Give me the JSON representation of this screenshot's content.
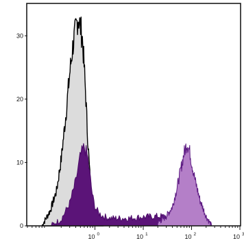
{
  "chart_data": {
    "type": "area",
    "title": "",
    "xlabel": "",
    "ylabel": "",
    "x_scale": "log",
    "xlim": [
      0.04,
      1000
    ],
    "ylim": [
      0,
      35
    ],
    "grid": false,
    "legend": "none",
    "y_ticks": [
      {
        "value": 0,
        "label": "0"
      },
      {
        "value": 10,
        "label": "10"
      },
      {
        "value": 20,
        "label": "20"
      },
      {
        "value": 30,
        "label": "30"
      }
    ],
    "x_ticks": [
      {
        "value": 1,
        "base": "10",
        "exp": "0"
      },
      {
        "value": 10,
        "base": "10",
        "exp": "1"
      },
      {
        "value": 100,
        "base": "10",
        "exp": "2"
      },
      {
        "value": 1000,
        "base": "10",
        "exp": "3"
      }
    ],
    "series": [
      {
        "fill": "#dcdcdc",
        "stroke": "#000000",
        "x": [
          0.08,
          0.12,
          0.16,
          0.2,
          0.25,
          0.3,
          0.35,
          0.4,
          0.45,
          0.5,
          0.55,
          0.6,
          0.65,
          0.7,
          0.8,
          0.9,
          1.0,
          1.2,
          1.5
        ],
        "y": [
          0,
          2.5,
          5.5,
          10.5,
          17.5,
          24,
          28.5,
          31,
          33,
          31.5,
          29.5,
          25,
          20,
          14.5,
          7,
          3,
          1.5,
          0.5,
          0
        ]
      },
      {
        "fill": "#5b1478",
        "stroke": "#4b0a68",
        "x": [
          0.12,
          0.2,
          0.3,
          0.4,
          0.5,
          0.6,
          0.7,
          0.8,
          0.9,
          1.0,
          1.2,
          1.5,
          2,
          3,
          5,
          10,
          20,
          30,
          40
        ],
        "y": [
          0,
          1,
          3.5,
          7,
          11,
          12.5,
          11,
          7.5,
          4.5,
          3,
          2,
          1.5,
          1.2,
          1.2,
          1.2,
          1.4,
          1.5,
          1.5,
          2
        ]
      },
      {
        "fill": "#b47fc8",
        "stroke": "#5c1a82",
        "x": [
          20,
          30,
          40,
          50,
          60,
          70,
          80,
          90,
          100,
          120,
          150,
          200,
          260
        ],
        "y": [
          0.5,
          1.5,
          3,
          6,
          9,
          11.5,
          13,
          12,
          10,
          7,
          4,
          1.5,
          0
        ]
      }
    ]
  }
}
